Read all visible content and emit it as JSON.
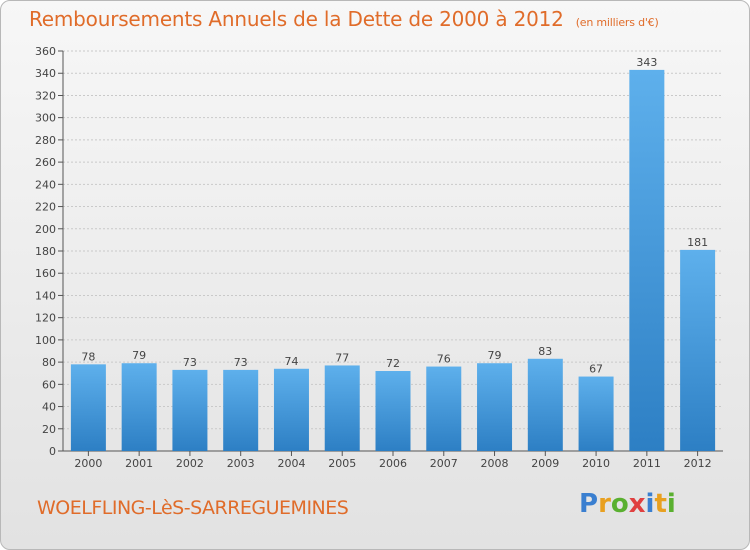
{
  "chart_data": {
    "type": "bar",
    "title": "Remboursements Annuels de la Dette de 2000 à 2012",
    "subtitle": "(en milliers d'€)",
    "xlabel": "",
    "ylabel": "",
    "categories": [
      "2000",
      "2001",
      "2002",
      "2003",
      "2004",
      "2005",
      "2006",
      "2007",
      "2008",
      "2009",
      "2010",
      "2011",
      "2012"
    ],
    "values": [
      78,
      79,
      73,
      73,
      74,
      77,
      72,
      76,
      79,
      83,
      67,
      343,
      181
    ],
    "ylim": [
      0,
      360
    ],
    "yticks": [
      0,
      20,
      40,
      60,
      80,
      100,
      120,
      140,
      160,
      180,
      200,
      220,
      240,
      260,
      280,
      300,
      320,
      340,
      360
    ],
    "grid": true,
    "legend": "none",
    "bar_color": "#4a9fe0"
  },
  "commune": "WOELFLING-LèS-SARREGUEMINES",
  "logo": {
    "text": "Proxiti",
    "letters": [
      {
        "ch": "P",
        "color": "#3a7fd0"
      },
      {
        "ch": "r",
        "color": "#e8a020"
      },
      {
        "ch": "o",
        "color": "#5ab030"
      },
      {
        "ch": "x",
        "color": "#e04040"
      },
      {
        "ch": "i",
        "color": "#3a7fd0"
      },
      {
        "ch": "t",
        "color": "#e8a020"
      },
      {
        "ch": "i",
        "color": "#5ab030"
      }
    ]
  }
}
